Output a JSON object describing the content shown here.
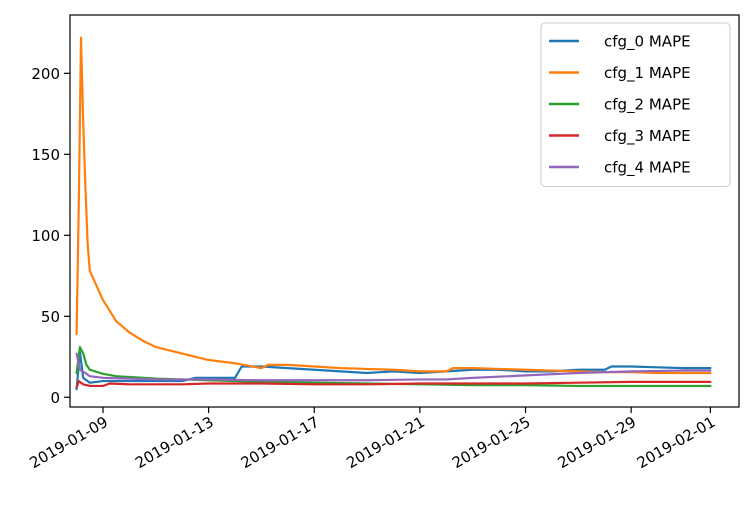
{
  "chart_data": {
    "type": "line",
    "title": "",
    "xlabel": "",
    "ylabel": "",
    "x_type": "date",
    "xlim": [
      "2019-01-07T18:00",
      "2019-02-02T02:00"
    ],
    "ylim": [
      -6,
      236
    ],
    "x_ticks": [
      "2019-01-09",
      "2019-01-13",
      "2019-01-17",
      "2019-01-21",
      "2019-01-25",
      "2019-01-29",
      "2019-02-01"
    ],
    "y_ticks": [
      0,
      50,
      100,
      150,
      200
    ],
    "y_tick_labels": [
      "0",
      "50",
      "100",
      "150",
      "200"
    ],
    "grid": false,
    "legend_position": "top-right",
    "series": [
      {
        "name": "cfg_0 MAPE",
        "color": "#1f77b4",
        "points": [
          [
            "2019-01-08T00:00",
            5
          ],
          [
            "2019-01-08T03:00",
            28
          ],
          [
            "2019-01-08T06:00",
            12
          ],
          [
            "2019-01-08T12:00",
            9
          ],
          [
            "2019-01-09T00:00",
            10
          ],
          [
            "2019-01-10T00:00",
            10
          ],
          [
            "2019-01-11T00:00",
            10
          ],
          [
            "2019-01-12T00:00",
            10
          ],
          [
            "2019-01-12T12:00",
            12
          ],
          [
            "2019-01-13T00:00",
            12
          ],
          [
            "2019-01-14T00:00",
            12
          ],
          [
            "2019-01-14T06:00",
            19
          ],
          [
            "2019-01-15T00:00",
            19
          ],
          [
            "2019-01-16T00:00",
            18
          ],
          [
            "2019-01-17T00:00",
            17
          ],
          [
            "2019-01-18T00:00",
            16
          ],
          [
            "2019-01-19T00:00",
            15
          ],
          [
            "2019-01-20T00:00",
            16
          ],
          [
            "2019-01-21T00:00",
            15
          ],
          [
            "2019-01-22T00:00",
            16
          ],
          [
            "2019-01-23T00:00",
            17
          ],
          [
            "2019-01-24T00:00",
            17
          ],
          [
            "2019-01-25T00:00",
            16
          ],
          [
            "2019-01-26T00:00",
            16
          ],
          [
            "2019-01-27T00:00",
            17
          ],
          [
            "2019-01-28T00:00",
            17
          ],
          [
            "2019-01-28T06:00",
            19
          ],
          [
            "2019-01-29T00:00",
            19
          ],
          [
            "2019-01-30T00:00",
            18.5
          ],
          [
            "2019-01-31T00:00",
            18
          ],
          [
            "2019-02-01T00:00",
            18
          ]
        ]
      },
      {
        "name": "cfg_1 MAPE",
        "color": "#ff7f0e",
        "points": [
          [
            "2019-01-08T00:00",
            39
          ],
          [
            "2019-01-08T02:00",
            120
          ],
          [
            "2019-01-08T04:00",
            222
          ],
          [
            "2019-01-08T06:00",
            170
          ],
          [
            "2019-01-08T08:00",
            130
          ],
          [
            "2019-01-08T10:00",
            95
          ],
          [
            "2019-01-08T12:00",
            78
          ],
          [
            "2019-01-09T00:00",
            60
          ],
          [
            "2019-01-09T12:00",
            47
          ],
          [
            "2019-01-10T00:00",
            40
          ],
          [
            "2019-01-10T12:00",
            35
          ],
          [
            "2019-01-11T00:00",
            31
          ],
          [
            "2019-01-11T12:00",
            29
          ],
          [
            "2019-01-12T00:00",
            27
          ],
          [
            "2019-01-13T00:00",
            23
          ],
          [
            "2019-01-14T00:00",
            21
          ],
          [
            "2019-01-15T00:00",
            18
          ],
          [
            "2019-01-15T06:00",
            20
          ],
          [
            "2019-01-16T00:00",
            20
          ],
          [
            "2019-01-17T00:00",
            19
          ],
          [
            "2019-01-18T00:00",
            18
          ],
          [
            "2019-01-19T00:00",
            17.5
          ],
          [
            "2019-01-20T00:00",
            17
          ],
          [
            "2019-01-21T00:00",
            16
          ],
          [
            "2019-01-22T00:00",
            16
          ],
          [
            "2019-01-22T06:00",
            18
          ],
          [
            "2019-01-23T00:00",
            18
          ],
          [
            "2019-01-24T00:00",
            17.5
          ],
          [
            "2019-01-25T00:00",
            17
          ],
          [
            "2019-01-26T00:00",
            16.5
          ],
          [
            "2019-01-27T00:00",
            16
          ],
          [
            "2019-01-28T00:00",
            15.5
          ],
          [
            "2019-01-29T00:00",
            15.5
          ],
          [
            "2019-01-30T00:00",
            15
          ],
          [
            "2019-01-31T00:00",
            15
          ],
          [
            "2019-02-01T00:00",
            15
          ]
        ]
      },
      {
        "name": "cfg_2 MAPE",
        "color": "#2ca02c",
        "points": [
          [
            "2019-01-08T00:00",
            15
          ],
          [
            "2019-01-08T03:00",
            31
          ],
          [
            "2019-01-08T06:00",
            27
          ],
          [
            "2019-01-08T09:00",
            20
          ],
          [
            "2019-01-08T12:00",
            17
          ],
          [
            "2019-01-09T00:00",
            14.5
          ],
          [
            "2019-01-09T12:00",
            13
          ],
          [
            "2019-01-10T00:00",
            12.5
          ],
          [
            "2019-01-11T00:00",
            11.5
          ],
          [
            "2019-01-12T00:00",
            11
          ],
          [
            "2019-01-13T00:00",
            10.5
          ],
          [
            "2019-01-14T00:00",
            10
          ],
          [
            "2019-01-15T00:00",
            9.5
          ],
          [
            "2019-01-17T00:00",
            9
          ],
          [
            "2019-01-19T00:00",
            8.5
          ],
          [
            "2019-01-21T00:00",
            8
          ],
          [
            "2019-01-23T00:00",
            7.5
          ],
          [
            "2019-01-25T00:00",
            7.5
          ],
          [
            "2019-01-27T00:00",
            7
          ],
          [
            "2019-01-29T00:00",
            7
          ],
          [
            "2019-02-01T00:00",
            7
          ]
        ]
      },
      {
        "name": "cfg_3 MAPE",
        "color": "#d62728",
        "points": [
          [
            "2019-01-08T00:00",
            6
          ],
          [
            "2019-01-08T02:00",
            10
          ],
          [
            "2019-01-08T06:00",
            8
          ],
          [
            "2019-01-08T12:00",
            7
          ],
          [
            "2019-01-09T00:00",
            7
          ],
          [
            "2019-01-09T06:00",
            8.5
          ],
          [
            "2019-01-10T00:00",
            8
          ],
          [
            "2019-01-11T00:00",
            8
          ],
          [
            "2019-01-12T00:00",
            8
          ],
          [
            "2019-01-13T00:00",
            8.5
          ],
          [
            "2019-01-15T00:00",
            8.5
          ],
          [
            "2019-01-17T00:00",
            8
          ],
          [
            "2019-01-19T00:00",
            8
          ],
          [
            "2019-01-21T00:00",
            8.5
          ],
          [
            "2019-01-23T00:00",
            8.5
          ],
          [
            "2019-01-25T00:00",
            8.5
          ],
          [
            "2019-01-27T00:00",
            9
          ],
          [
            "2019-01-29T00:00",
            9.5
          ],
          [
            "2019-02-01T00:00",
            9.5
          ]
        ]
      },
      {
        "name": "cfg_4 MAPE",
        "color": "#9467bd",
        "points": [
          [
            "2019-01-08T00:00",
            27
          ],
          [
            "2019-01-08T03:00",
            17
          ],
          [
            "2019-01-08T08:00",
            15
          ],
          [
            "2019-01-08T12:00",
            13
          ],
          [
            "2019-01-09T00:00",
            12
          ],
          [
            "2019-01-10T00:00",
            11.5
          ],
          [
            "2019-01-11T00:00",
            11
          ],
          [
            "2019-01-12T00:00",
            11
          ],
          [
            "2019-01-13T00:00",
            11
          ],
          [
            "2019-01-15T00:00",
            10.5
          ],
          [
            "2019-01-17T00:00",
            10.5
          ],
          [
            "2019-01-19T00:00",
            10.5
          ],
          [
            "2019-01-21T00:00",
            11
          ],
          [
            "2019-01-22T00:00",
            11
          ],
          [
            "2019-01-23T00:00",
            12
          ],
          [
            "2019-01-25T00:00",
            13.5
          ],
          [
            "2019-01-27T00:00",
            15
          ],
          [
            "2019-01-29T00:00",
            16
          ],
          [
            "2019-01-31T00:00",
            16.5
          ],
          [
            "2019-02-01T00:00",
            16.5
          ]
        ]
      }
    ]
  }
}
